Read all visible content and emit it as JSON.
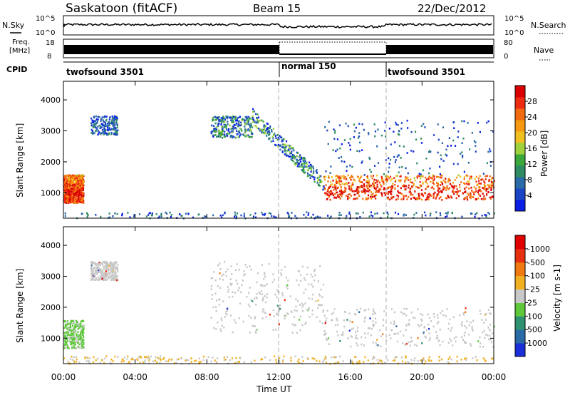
{
  "header": {
    "station": "Saskatoon (fitACF)",
    "beam": "Beam 15",
    "date": "22/Dec/2012"
  },
  "noise_panel": {
    "left_label": "N.Sky",
    "left_ticks": [
      "10^5",
      "10^0"
    ],
    "right_label": "N.Search",
    "right_ticks": [
      "10^5",
      "10^0"
    ]
  },
  "freq_panel": {
    "left_label_1": "Freq.",
    "left_label_2": "[MHz]",
    "left_ticks": [
      "18",
      "8"
    ],
    "right_label": "Nave",
    "right_ticks": [
      "80",
      "0"
    ]
  },
  "cpid_panel": {
    "label": "CPID",
    "modes": [
      {
        "name": "twofsound 3501",
        "start_hour": 0,
        "end_hour": 12
      },
      {
        "name": "normal 150",
        "start_hour": 12,
        "end_hour": 18
      },
      {
        "name": "twofsound 3501",
        "start_hour": 18,
        "end_hour": 24
      }
    ]
  },
  "time_axis": {
    "title": "Time UT",
    "ticks": [
      "00:00",
      "04:00",
      "08:00",
      "12:00",
      "16:00",
      "20:00",
      "00:00"
    ]
  },
  "chart_data": [
    {
      "type": "heatmap",
      "name": "power",
      "ylabel": "Slant Range [km]",
      "y_ticks": [
        "1000",
        "2000",
        "3000",
        "4000"
      ],
      "xlim": [
        0,
        24
      ],
      "ylim": [
        180,
        4600
      ],
      "colorbar": {
        "label": "Power [dB]",
        "ticks": [
          "4",
          "8",
          "12",
          "16",
          "20",
          "24",
          "28"
        ],
        "colors": [
          "#0b1ee6",
          "#1b45c4",
          "#2a6aa6",
          "#2f8c62",
          "#3aa83a",
          "#9fd13a",
          "#f0c020",
          "#f59a10",
          "#f26a10",
          "#ee2a10",
          "#d80000"
        ]
      },
      "regions": [
        {
          "hours": [
            0.0,
            1.1
          ],
          "range_km": [
            700,
            1600
          ],
          "level": "strong"
        },
        {
          "hours": [
            1.5,
            3.0
          ],
          "range_km": [
            2900,
            3500
          ],
          "level": "weak"
        },
        {
          "hours": [
            8.2,
            10.5
          ],
          "range_km": [
            2800,
            3500
          ],
          "level": "moderate"
        },
        {
          "hours": [
            10.5,
            14.5
          ],
          "range_km": [
            1200,
            3500
          ],
          "level": "moderate"
        },
        {
          "hours": [
            14.5,
            24.0
          ],
          "range_km": [
            800,
            1600
          ],
          "level": "strong"
        },
        {
          "hours": [
            14.5,
            24.0
          ],
          "range_km": [
            1600,
            3400
          ],
          "level": "weak"
        },
        {
          "hours": [
            0.0,
            24.0
          ],
          "range_km": [
            200,
            400
          ],
          "level": "weak"
        }
      ]
    },
    {
      "type": "heatmap",
      "name": "velocity",
      "ylabel": "Slant Range [km]",
      "y_ticks": [
        "1000",
        "2000",
        "3000",
        "4000"
      ],
      "xlim": [
        0,
        24
      ],
      "ylim": [
        180,
        4600
      ],
      "colorbar": {
        "label": "Velocity [m s-1]",
        "ticks": [
          "1000",
          "500",
          "100",
          "25",
          "-25",
          "-100",
          "-500",
          "-1000"
        ],
        "colors": [
          "#1b2fd8",
          "#2a6aa6",
          "#2e9170",
          "#5ec83a",
          "#c8c8c8",
          "#f0b020",
          "#f07a10",
          "#e63010",
          "#e00000"
        ]
      },
      "regions": [
        {
          "hours": [
            0.0,
            1.1
          ],
          "range_km": [
            700,
            1600
          ],
          "level": "green"
        },
        {
          "hours": [
            1.5,
            3.0
          ],
          "range_km": [
            2900,
            3500
          ],
          "level": "grey"
        },
        {
          "hours": [
            8.2,
            14.5
          ],
          "range_km": [
            1200,
            3500
          ],
          "level": "grey"
        },
        {
          "hours": [
            14.5,
            24.0
          ],
          "range_km": [
            750,
            2000
          ],
          "level": "grey"
        },
        {
          "hours": [
            0.0,
            24.0
          ],
          "range_km": [
            200,
            450
          ],
          "level": "orange"
        }
      ]
    }
  ]
}
